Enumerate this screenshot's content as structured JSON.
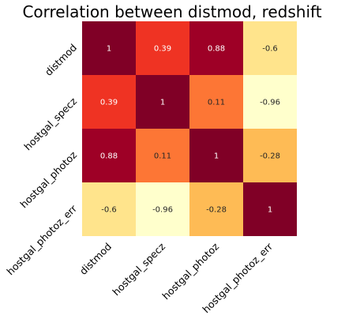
{
  "chart_data": {
    "type": "heatmap",
    "title": "Correlation between distmod, redshift",
    "row_labels": [
      "distmod",
      "hostgal_specz",
      "hostgal_photoz",
      "hostgal_photoz_err"
    ],
    "col_labels": [
      "distmod",
      "hostgal_specz",
      "hostgal_photoz",
      "hostgal_photoz_err"
    ],
    "values": [
      [
        1,
        0.39,
        0.88,
        -0.6
      ],
      [
        0.39,
        1,
        0.11,
        -0.96
      ],
      [
        0.88,
        0.11,
        1,
        -0.28
      ],
      [
        -0.6,
        -0.96,
        -0.28,
        1
      ]
    ],
    "cell_labels": [
      [
        "1",
        "0.39",
        "0.88",
        "-0.6"
      ],
      [
        "0.39",
        "1",
        "0.11",
        "-0.96"
      ],
      [
        "0.88",
        "0.11",
        "1",
        "-0.28"
      ],
      [
        "-0.6",
        "-0.96",
        "-0.28",
        "1"
      ]
    ],
    "colormap": "YlOrRd",
    "value_range": [
      -0.96,
      1
    ],
    "colorbar": false,
    "grid": false
  }
}
